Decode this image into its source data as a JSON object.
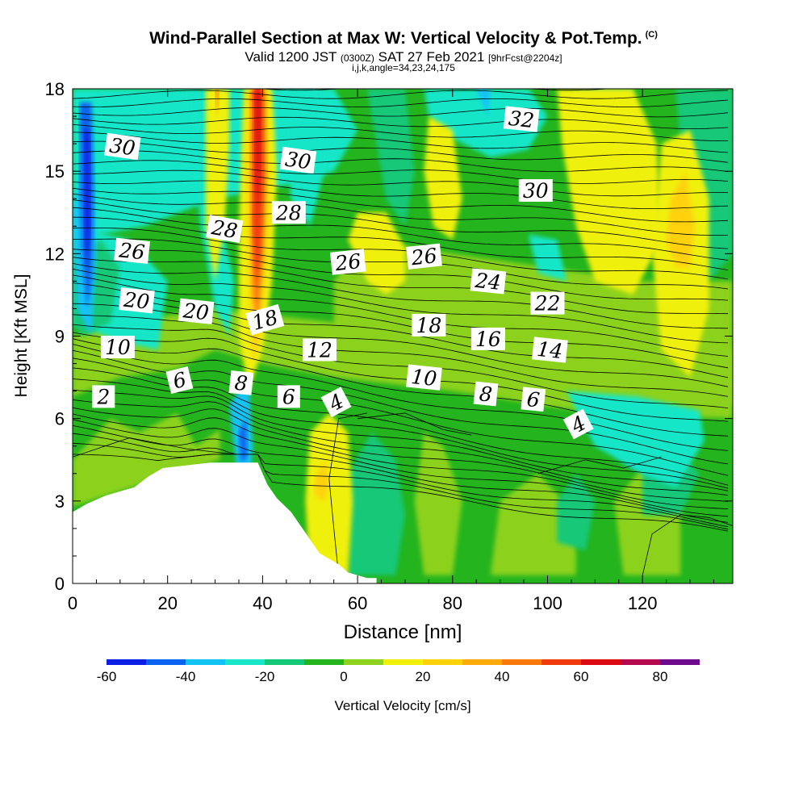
{
  "title": "Wind-Parallel Section at Max W: Vertical Velocity & Pot.Temp.",
  "title_mark": "(C)",
  "valid_pre": "Valid 1200 JST",
  "valid_utc": "(0300Z)",
  "valid_date": "SAT 27 Feb 2021",
  "valid_fcst": "[9hrFcst@2204z]",
  "indices": "i,j,k,angle=34,23,24,175",
  "chart_data": {
    "type": "heatmap",
    "xlabel": "Distance [nm]",
    "ylabel": "Height [Kft MSL]",
    "xlim": [
      0,
      139
    ],
    "ylim": [
      0,
      18
    ],
    "x_ticks": [
      "0",
      "20",
      "40",
      "60",
      "80",
      "100",
      "120"
    ],
    "x_tick_values": [
      0,
      20,
      40,
      60,
      80,
      100,
      120
    ],
    "y_ticks": [
      "0",
      "3",
      "6",
      "9",
      "12",
      "15",
      "18"
    ],
    "y_tick_values": [
      0,
      3,
      6,
      9,
      12,
      15,
      18
    ],
    "colorbar": {
      "label": "Vertical Velocity [cm/s]",
      "levels": [
        -60,
        -50,
        -40,
        -30,
        -20,
        -10,
        0,
        10,
        20,
        30,
        40,
        50,
        60,
        70,
        80,
        90
      ],
      "colors": [
        "#0a1ee6",
        "#0a64f0",
        "#14c3f5",
        "#19e6c8",
        "#14c878",
        "#23b41e",
        "#8cd21e",
        "#f0f00a",
        "#ffd20a",
        "#ffaa0a",
        "#ff780a",
        "#f03c0a",
        "#dc0a14",
        "#b40a50",
        "#6e0a8c"
      ],
      "tick_labels": [
        "-60",
        "-40",
        "-20",
        "0",
        "20",
        "40",
        "60",
        "80"
      ],
      "tick_values": [
        -60,
        -40,
        -20,
        0,
        20,
        40,
        60,
        80
      ]
    },
    "terrain_kft": [
      [
        0,
        2.6
      ],
      [
        3,
        2.9
      ],
      [
        7,
        3.2
      ],
      [
        13,
        3.5
      ],
      [
        16,
        3.9
      ],
      [
        19,
        4.2
      ],
      [
        29,
        4.4
      ],
      [
        39,
        4.4
      ],
      [
        39,
        4.4
      ],
      [
        41,
        3.6
      ],
      [
        43,
        3.1
      ],
      [
        46,
        2.6
      ],
      [
        48,
        2.1
      ],
      [
        50,
        1.6
      ],
      [
        52,
        1.1
      ],
      [
        56,
        0.7
      ],
      [
        58,
        0.4
      ],
      [
        62,
        0.2
      ],
      [
        64,
        0.2
      ]
    ],
    "theta_labels": [
      {
        "text": "30",
        "x": 10.5,
        "y": 15.9,
        "angle": 8
      },
      {
        "text": "30",
        "x": 47.5,
        "y": 15.4,
        "angle": 8
      },
      {
        "text": "32",
        "x": 94.5,
        "y": 16.9,
        "angle": 6
      },
      {
        "text": "30",
        "x": 97.5,
        "y": 14.3,
        "angle": 0
      },
      {
        "text": "28",
        "x": 32,
        "y": 12.9,
        "angle": 10
      },
      {
        "text": "28",
        "x": 45.5,
        "y": 13.5,
        "angle": 0
      },
      {
        "text": "26",
        "x": 12.5,
        "y": 12.1,
        "angle": 6
      },
      {
        "text": "26",
        "x": 58,
        "y": 11.7,
        "angle": -6
      },
      {
        "text": "26",
        "x": 74,
        "y": 11.9,
        "angle": -6
      },
      {
        "text": "24",
        "x": 87.5,
        "y": 11.0,
        "angle": 6
      },
      {
        "text": "22",
        "x": 100,
        "y": 10.2,
        "angle": 0
      },
      {
        "text": "20",
        "x": 13.5,
        "y": 10.3,
        "angle": 6
      },
      {
        "text": "20",
        "x": 26,
        "y": 9.9,
        "angle": 6
      },
      {
        "text": "18",
        "x": 40.5,
        "y": 9.6,
        "angle": -16
      },
      {
        "text": "18",
        "x": 75,
        "y": 9.4,
        "angle": 0
      },
      {
        "text": "16",
        "x": 87.5,
        "y": 8.9,
        "angle": 0
      },
      {
        "text": "14",
        "x": 100.5,
        "y": 8.5,
        "angle": 6
      },
      {
        "text": "12",
        "x": 52,
        "y": 8.5,
        "angle": 0
      },
      {
        "text": "10",
        "x": 9.5,
        "y": 8.6,
        "angle": 0
      },
      {
        "text": "10",
        "x": 74,
        "y": 7.5,
        "angle": 6
      },
      {
        "text": "8",
        "x": 35.5,
        "y": 7.3,
        "angle": 6
      },
      {
        "text": "8",
        "x": 87,
        "y": 6.9,
        "angle": 6
      },
      {
        "text": "6",
        "x": 22.5,
        "y": 7.4,
        "angle": -14
      },
      {
        "text": "6",
        "x": 45.5,
        "y": 6.8,
        "angle": 0
      },
      {
        "text": "6",
        "x": 97,
        "y": 6.7,
        "angle": 6
      },
      {
        "text": "4",
        "x": 55.5,
        "y": 6.6,
        "angle": -28
      },
      {
        "text": "4",
        "x": 106.5,
        "y": 5.8,
        "angle": -28
      },
      {
        "text": "2",
        "x": 6.5,
        "y": 6.8,
        "angle": 0
      }
    ]
  }
}
